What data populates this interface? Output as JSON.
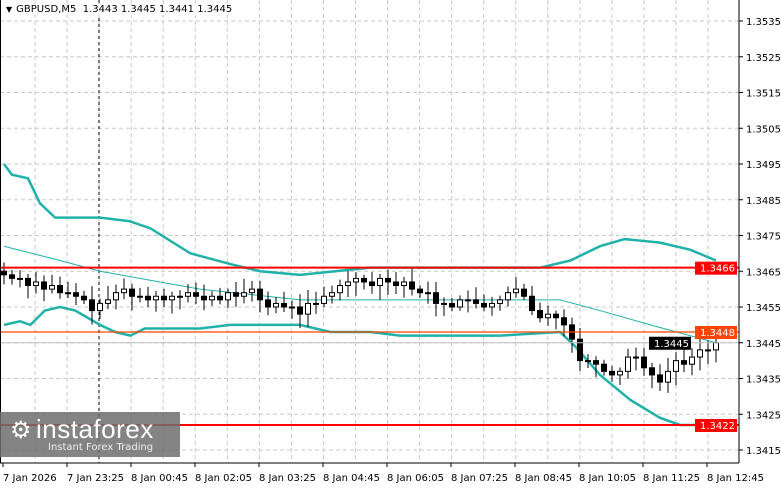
{
  "header": {
    "symbol": "GBPUSD,M5",
    "ohlc": "1.3443 1.3445 1.3441 1.3445"
  },
  "watermark": {
    "brand": "instaforex",
    "tagline": "Instant Forex Trading"
  },
  "colors": {
    "candle": "#000000",
    "band": "#20b2aa",
    "resistance": "#ff0000",
    "level_orange": "#ff4500",
    "bid": "#c0c0c0",
    "grid": "#c8c8c8"
  },
  "chart_data": {
    "type": "candlestick",
    "title": "GBPUSD,M5",
    "ylim": [
      1.341,
      1.354
    ],
    "grid": true,
    "y_ticks": [
      "1.3535",
      "1.3525",
      "1.3515",
      "1.3505",
      "1.3495",
      "1.3485",
      "1.3475",
      "1.3465",
      "1.3455",
      "1.3445",
      "1.3435",
      "1.3425",
      "1.3415"
    ],
    "x_ticks": [
      "7 Jan 2026",
      "7 Jan 23:25",
      "8 Jan 00:45",
      "8 Jan 02:05",
      "8 Jan 03:25",
      "8 Jan 04:45",
      "8 Jan 06:05",
      "8 Jan 07:25",
      "8 Jan 08:45",
      "8 Jan 10:05",
      "8 Jan 11:25",
      "8 Jan 12:45"
    ],
    "closes": [
      1.3464,
      1.3463,
      1.3463,
      1.3461,
      1.3462,
      1.346,
      1.3461,
      1.3459,
      1.3459,
      1.3458,
      1.3457,
      1.3454,
      1.3456,
      1.3457,
      1.3459,
      1.346,
      1.3458,
      1.3458,
      1.3457,
      1.3458,
      1.3457,
      1.3458,
      1.3458,
      1.3459,
      1.3458,
      1.3457,
      1.3458,
      1.3457,
      1.3459,
      1.3458,
      1.3459,
      1.346,
      1.3457,
      1.3455,
      1.3456,
      1.3455,
      1.3455,
      1.3453,
      1.3456,
      1.3456,
      1.3458,
      1.3459,
      1.3461,
      1.3462,
      1.3463,
      1.3462,
      1.3461,
      1.3463,
      1.3462,
      1.3461,
      1.3462,
      1.346,
      1.3459,
      1.3459,
      1.3456,
      1.3456,
      1.3455,
      1.3457,
      1.3457,
      1.3456,
      1.3455,
      1.3456,
      1.3457,
      1.3459,
      1.346,
      1.3458,
      1.3454,
      1.3452,
      1.3453,
      1.3452,
      1.345,
      1.3446,
      1.344,
      1.344,
      1.3439,
      1.3437,
      1.3436,
      1.3437,
      1.3441,
      1.3441,
      1.3438,
      1.3436,
      1.3434,
      1.3437,
      1.344,
      1.3439,
      1.3441,
      1.3443,
      1.3443,
      1.3445
    ],
    "bands": {
      "upper": [
        [
          0,
          1.3495
        ],
        [
          1,
          1.3492
        ],
        [
          3,
          1.3491
        ],
        [
          4.5,
          1.3484
        ],
        [
          6.4,
          1.348
        ],
        [
          12,
          1.348
        ],
        [
          15.7,
          1.3479
        ],
        [
          18.3,
          1.3477
        ],
        [
          23.3,
          1.347
        ],
        [
          28.3,
          1.3467
        ],
        [
          32,
          1.3465
        ],
        [
          37,
          1.3464
        ],
        [
          45.8,
          1.3466
        ],
        [
          49.5,
          1.3466
        ],
        [
          67,
          1.3466
        ],
        [
          70.8,
          1.3468
        ],
        [
          74.5,
          1.3472
        ],
        [
          77.6,
          1.3474
        ],
        [
          82,
          1.3473
        ],
        [
          85.8,
          1.3471
        ],
        [
          89,
          1.3468
        ]
      ],
      "middle": [
        [
          0,
          1.3472
        ],
        [
          7,
          1.3468
        ],
        [
          12,
          1.3465
        ],
        [
          24.5,
          1.346
        ],
        [
          37,
          1.3457
        ],
        [
          49.5,
          1.3457
        ],
        [
          69.5,
          1.3457
        ],
        [
          74.5,
          1.3454
        ],
        [
          80.8,
          1.345
        ],
        [
          89,
          1.3445
        ]
      ],
      "lower": [
        [
          0,
          1.345
        ],
        [
          2,
          1.3451
        ],
        [
          3.3,
          1.345
        ],
        [
          5.1,
          1.3454
        ],
        [
          7,
          1.3455
        ],
        [
          8.9,
          1.3454
        ],
        [
          12,
          1.345
        ],
        [
          13.9,
          1.3448
        ],
        [
          15.8,
          1.3447
        ],
        [
          17.6,
          1.3449
        ],
        [
          24.5,
          1.3449
        ],
        [
          28.3,
          1.345
        ],
        [
          32,
          1.345
        ],
        [
          37,
          1.345
        ],
        [
          40.8,
          1.3448
        ],
        [
          45.8,
          1.3448
        ],
        [
          49.5,
          1.3447
        ],
        [
          62,
          1.3447
        ],
        [
          69.5,
          1.3448
        ],
        [
          71.4,
          1.3444
        ],
        [
          74.5,
          1.3436
        ],
        [
          78.3,
          1.3429
        ],
        [
          82,
          1.3424
        ],
        [
          84.5,
          1.3422
        ],
        [
          89,
          1.3422
        ]
      ]
    },
    "levels": [
      {
        "price": 1.3466,
        "label": "1.3466",
        "color": "#ff0000"
      },
      {
        "price": 1.3448,
        "label": "1.3448",
        "color": "#ff4500"
      },
      {
        "price": 1.3445,
        "label": "1.3445",
        "color": "#000000",
        "kind": "bid"
      },
      {
        "price": 1.3422,
        "label": "1.3422",
        "color": "#ff0000"
      }
    ]
  }
}
